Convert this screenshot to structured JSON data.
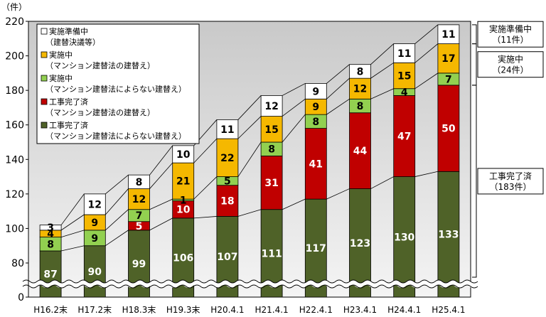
{
  "chart_data": {
    "type": "bar",
    "stacked": true,
    "unit_label": "（件）",
    "categories": [
      "H16.2末",
      "H17.2末",
      "H18.3末",
      "H19.3末",
      "H20.4.1",
      "H21.4.1",
      "H22.4.1",
      "H23.4.1",
      "H24.4.1",
      "H25.4.1"
    ],
    "yticks": [
      0,
      80,
      100,
      120,
      140,
      160,
      180,
      200,
      220
    ],
    "ylim": [
      0,
      220
    ],
    "axis_break": true,
    "gridlines": false,
    "connector_lines": true,
    "series": [
      {
        "name": "工事完了済（マンション建替法によらない建替え）",
        "legend": [
          "工事完了済",
          "（マンション建替法によらない建替え）"
        ],
        "color": "#4f6228",
        "label_color": "#ffffff",
        "values": [
          87,
          90,
          99,
          106,
          107,
          111,
          117,
          123,
          130,
          133
        ]
      },
      {
        "name": "工事完了済（マンション建替法の建替え）",
        "legend": [
          "工事完了済",
          "（マンション建替法の建替え）"
        ],
        "color": "#c00000",
        "label_color": "#ffffff",
        "values": [
          0,
          0,
          5,
          10,
          18,
          31,
          41,
          44,
          47,
          50
        ]
      },
      {
        "name": "実施中（マンション建替法によらない建替え）",
        "legend": [
          "実施中",
          "（マンション建替法によらない建替え）"
        ],
        "color": "#92d050",
        "label_color": "#000000",
        "values": [
          8,
          9,
          7,
          1,
          5,
          8,
          8,
          8,
          4,
          7
        ]
      },
      {
        "name": "実施中（マンション建替法の建替え）",
        "legend": [
          "実施中",
          "（マンション建替法の建替え）"
        ],
        "color": "#f5b800",
        "label_color": "#000000",
        "values": [
          4,
          9,
          12,
          21,
          22,
          15,
          9,
          12,
          15,
          17
        ]
      },
      {
        "name": "実施準備中（建替決議等）",
        "legend": [
          "実施準備中",
          "（建替決議等）"
        ],
        "color": "#ffffff",
        "label_color": "#000000",
        "values": [
          3,
          12,
          8,
          10,
          11,
          12,
          9,
          8,
          11,
          11
        ]
      }
    ],
    "legend_order": [
      4,
      3,
      2,
      1,
      0
    ],
    "legend_position": "top-left",
    "annotations": [
      {
        "text": [
          "実施準備中",
          "（11件）"
        ],
        "target_series": [
          4
        ]
      },
      {
        "text": [
          "実施中",
          "（24件）"
        ],
        "target_series": [
          3,
          2
        ]
      },
      {
        "text": [
          "工事完了済",
          "（183件）"
        ],
        "target_series": [
          1,
          0
        ]
      }
    ]
  }
}
